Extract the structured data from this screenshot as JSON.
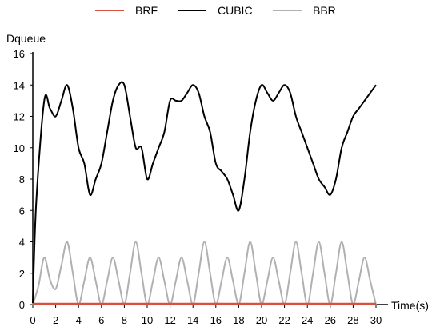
{
  "chart_data": {
    "type": "line",
    "ylabel": "Dqueue",
    "xlabel": "Time(s)",
    "xlim": [
      0,
      30
    ],
    "ylim": [
      0,
      16
    ],
    "x_ticks": [
      "0",
      "2",
      "4",
      "6",
      "8",
      "10",
      "12",
      "14",
      "16",
      "18",
      "20",
      "22",
      "24",
      "26",
      "28",
      "30"
    ],
    "y_ticks": [
      "0",
      "2",
      "4",
      "6",
      "8",
      "10",
      "12",
      "14",
      "16"
    ],
    "grid": false,
    "legend_position": "top",
    "series": [
      {
        "name": "BRF",
        "color": "#d9503f",
        "x": [
          0,
          30
        ],
        "y": [
          0.05,
          0.05
        ]
      },
      {
        "name": "CUBIC",
        "color": "#000000",
        "x": [
          0,
          0.3,
          1,
          1.5,
          2,
          2.5,
          3,
          3.5,
          4,
          4.5,
          5,
          5.5,
          6,
          6.5,
          7,
          7.5,
          8,
          8.5,
          9,
          9.5,
          10,
          10.5,
          11,
          11.5,
          12,
          12.5,
          13,
          13.5,
          14,
          14.5,
          15,
          15.5,
          16,
          16.5,
          17,
          17.5,
          18,
          18.5,
          19,
          19.5,
          20,
          20.5,
          21,
          21.5,
          22,
          22.5,
          23,
          23.5,
          24,
          24.5,
          25,
          25.5,
          26,
          26.5,
          27,
          27.5,
          28,
          28.5,
          29,
          29.5,
          30
        ],
        "y": [
          0.1,
          6.5,
          13,
          12.5,
          12,
          13,
          14,
          12.5,
          10,
          9,
          7,
          8,
          9,
          11,
          13,
          14,
          14,
          12,
          10,
          10,
          8,
          9,
          10,
          11,
          13,
          13,
          13,
          13.5,
          14,
          13.5,
          12,
          11,
          9,
          8.5,
          8,
          7,
          6,
          8,
          11,
          13,
          14,
          13.5,
          13,
          13.5,
          14,
          13.5,
          12,
          11,
          10,
          9,
          8,
          7.5,
          7,
          8,
          10,
          11,
          12,
          12.5,
          13,
          13.5,
          14
        ]
      },
      {
        "name": "BBR",
        "color": "#b0b0b0",
        "x": [
          0,
          0.5,
          1,
          1.5,
          2,
          2.5,
          3,
          3.5,
          4,
          4.5,
          5,
          5.5,
          6,
          6.5,
          7,
          7.5,
          8,
          8.5,
          9,
          9.5,
          10,
          10.5,
          11,
          11.5,
          12,
          12.5,
          13,
          13.5,
          14,
          14.5,
          15,
          15.5,
          16,
          16.5,
          17,
          17.5,
          18,
          18.5,
          19,
          19.5,
          20,
          20.5,
          21,
          21.5,
          22,
          22.5,
          23,
          23.5,
          24,
          24.5,
          25,
          25.5,
          26,
          26.5,
          27,
          27.5,
          28,
          28.5,
          29,
          29.5,
          30
        ],
        "y": [
          0,
          1.2,
          3,
          1.6,
          1,
          2.5,
          4,
          2,
          0,
          1.5,
          3,
          1.5,
          0,
          1.5,
          3,
          1.5,
          0,
          2,
          4,
          2,
          0,
          1.5,
          3,
          1.5,
          0,
          1.5,
          3,
          1.5,
          0,
          2,
          4,
          2,
          0,
          1.5,
          3,
          1.5,
          0,
          2,
          4,
          2,
          0,
          1.5,
          3,
          1.5,
          0,
          2,
          4,
          2,
          0,
          2,
          4,
          2,
          0,
          2,
          4,
          2,
          0,
          1.5,
          3,
          1.5,
          0
        ]
      }
    ]
  }
}
